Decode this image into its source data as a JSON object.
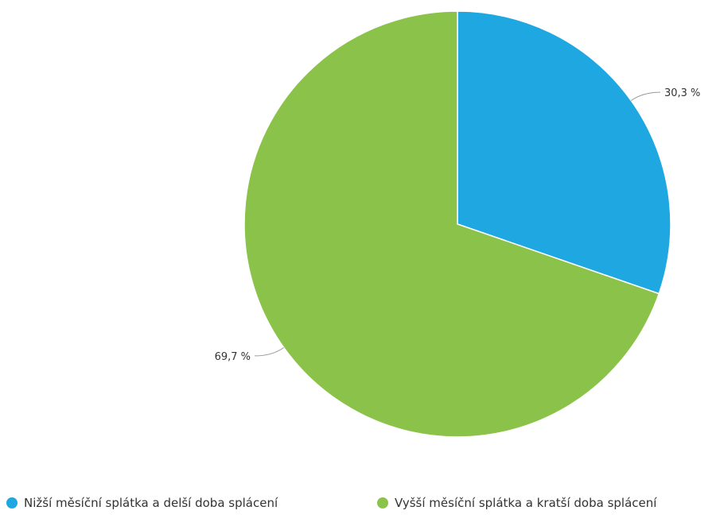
{
  "chart_data": {
    "type": "pie",
    "categories": [
      "Nižší měsíční splátka a delší doba splácení",
      "Vyšší měsíční splátka a kratší doba splácení"
    ],
    "values": [
      30.3,
      69.7
    ],
    "data_labels": [
      "30,3 %",
      "69,7 %"
    ],
    "colors": [
      "#1ea7e1",
      "#8bc34a"
    ],
    "legend_placement": "bottom",
    "title": ""
  }
}
